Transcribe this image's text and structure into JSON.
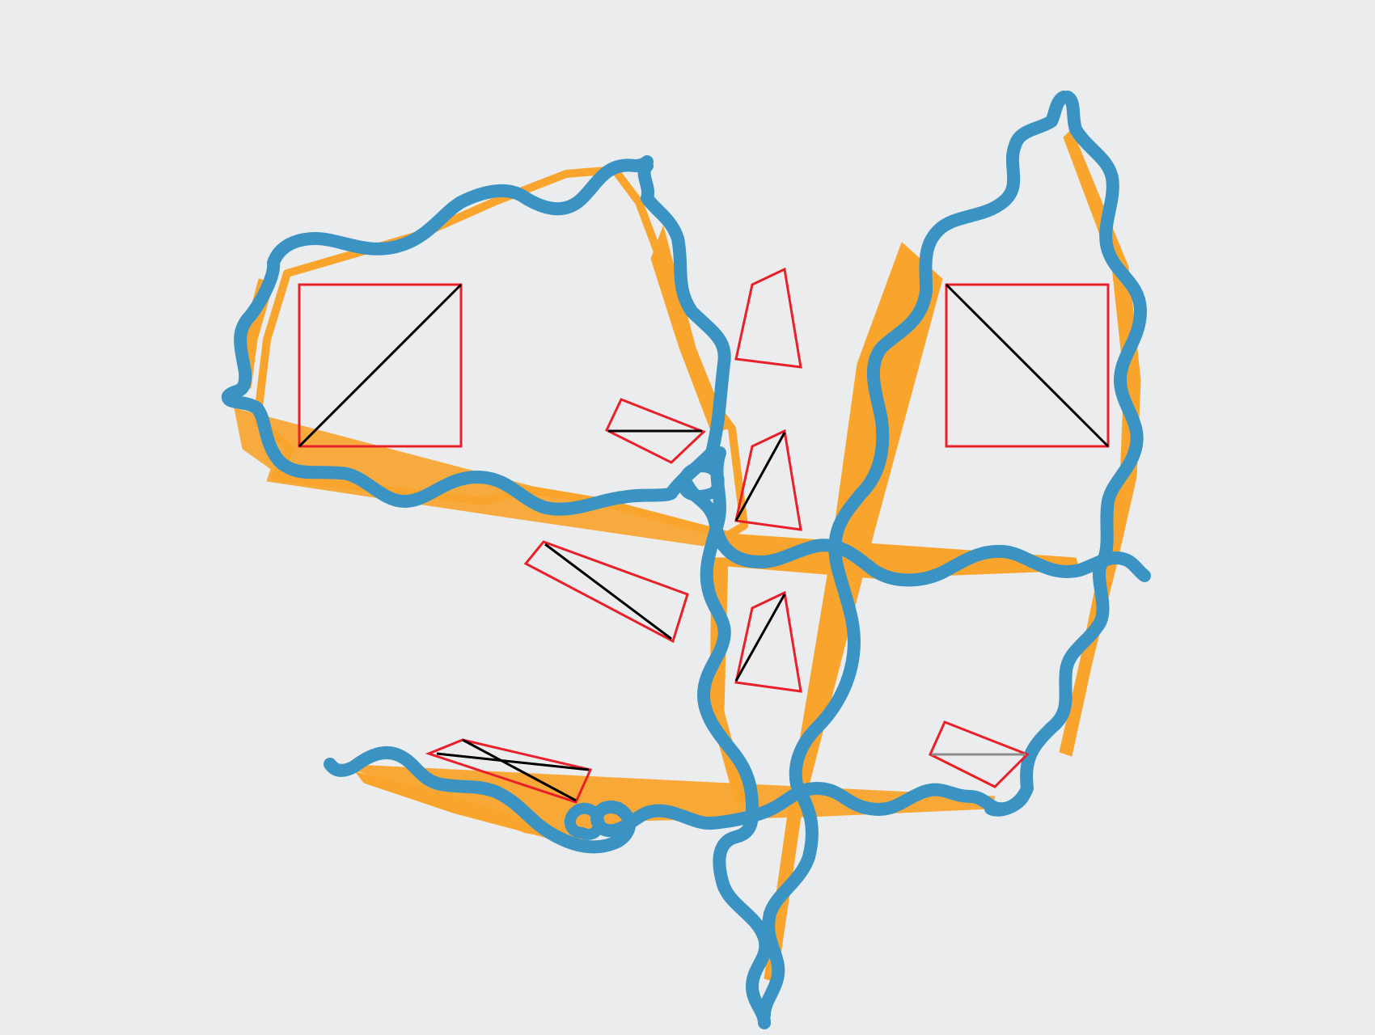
{
  "colors": {
    "background": "#EBECEE",
    "path_stroke": "#3A93C2",
    "path_core": "#2A7CA8",
    "fill_shape": "#F9A52D",
    "marker_outline": "#E8202A",
    "marker_diagonal": "#000000",
    "marker_diagonal_muted": "#8C8C8C"
  },
  "layers": [
    "orange-fill-shapes",
    "blue-wavy-paths",
    "red-quad-markers"
  ]
}
